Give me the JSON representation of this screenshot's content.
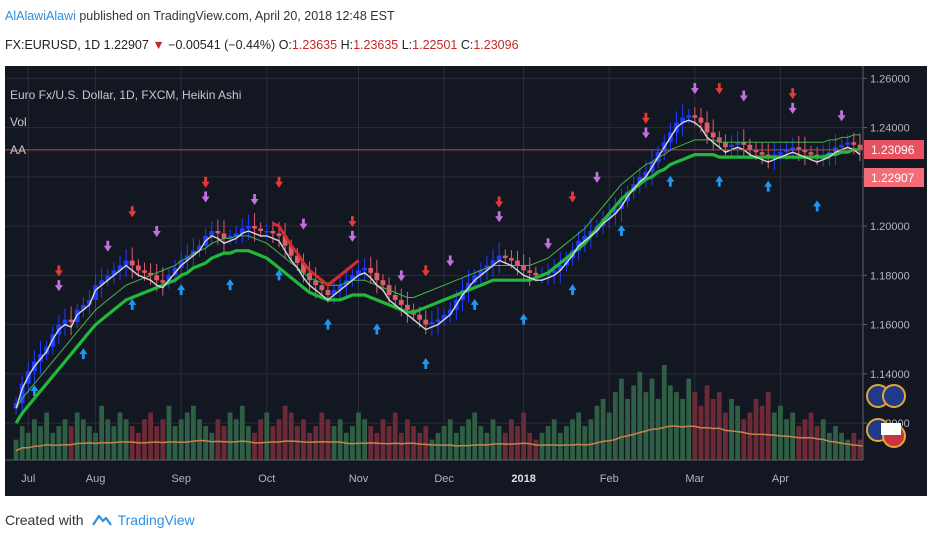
{
  "header": {
    "author": "AlAlawiAlawi",
    "published": "published on TradingView.com, April 20, 2018 12:48 EST"
  },
  "ohlc": {
    "symbol": "FX:EURUSD, 1D",
    "last": "1.22907",
    "change": "−0.00541 (−0.44%)",
    "o_label": "O:",
    "o": "1.23635",
    "h_label": "H:",
    "h": "1.23635",
    "l_label": "L:",
    "l": "1.22501",
    "c_label": "C:",
    "c": "1.23096"
  },
  "legend": {
    "main": "Euro Fx/U.S. Dollar, 1D, FXCM, Heikin Ashi",
    "vol": "Vol",
    "aa": "AA"
  },
  "price_tags": {
    "upper": "1.23096",
    "lower": "1.22907"
  },
  "footer": {
    "created_with": "Created with",
    "brand": "TradingView"
  },
  "colors": {
    "background": "#131722",
    "grid": "#2a2e39",
    "bull_candle": "#1e3cff",
    "bear_candle": "#e05b6a",
    "ema_white": "#d8d8d8",
    "ema_green": "#22b83a",
    "thin_green": "#4caf50",
    "red_line": "#d82b2b",
    "buy_arrow": "#2196f3",
    "sell_arrow": "#c36fe0",
    "red_arrow": "#e53935",
    "vol_up": "#2e5e44",
    "vol_down": "#6b2a36",
    "vol_ma": "#c8834a",
    "hline": "#b05050",
    "tag_upper": "#e6525f",
    "tag_lower": "#f26d78"
  },
  "chart_data": {
    "type": "line",
    "title": "Euro Fx/U.S. Dollar, 1D, FXCM, Heikin Ashi",
    "x_tick_labels": [
      "Jul",
      "Aug",
      "Sep",
      "Oct",
      "Nov",
      "Dec",
      "2018",
      "Feb",
      "Mar",
      "Apr"
    ],
    "y_tick_labels": [
      "1.26000",
      "1.24000",
      "1.22000",
      "1.20000",
      "1.18000",
      "1.16000",
      "1.14000",
      "1.12000"
    ],
    "ylim": [
      1.105,
      1.265
    ],
    "grid": true,
    "series": [
      {
        "values": [
          1.128,
          1.136,
          1.141,
          1.145,
          1.148,
          1.151,
          1.156,
          1.16,
          1.162,
          1.161,
          1.166,
          1.168,
          1.17,
          1.176,
          1.178,
          1.18,
          1.182,
          1.184,
          1.186,
          1.184,
          1.182,
          1.181,
          1.18,
          1.178,
          1.177,
          1.18,
          1.183,
          1.186,
          1.188,
          1.19,
          1.192,
          1.196,
          1.198,
          1.197,
          1.195,
          1.196,
          1.197,
          1.199,
          1.2,
          1.199,
          1.198,
          1.198,
          1.197,
          1.196,
          1.192,
          1.188,
          1.185,
          1.181,
          1.178,
          1.176,
          1.174,
          1.172,
          1.174,
          1.176,
          1.178,
          1.18,
          1.182,
          1.183,
          1.181,
          1.178,
          1.176,
          1.172,
          1.17,
          1.168,
          1.166,
          1.164,
          1.162,
          1.16,
          1.161,
          1.162,
          1.164,
          1.166,
          1.17,
          1.174,
          1.177,
          1.18,
          1.182,
          1.184,
          1.186,
          1.188,
          1.187,
          1.186,
          1.184,
          1.182,
          1.181,
          1.18,
          1.18,
          1.181,
          1.182,
          1.184,
          1.187,
          1.19,
          1.194,
          1.196,
          1.198,
          1.2,
          1.203,
          1.205,
          1.207,
          1.21,
          1.214,
          1.217,
          1.22,
          1.222,
          1.226,
          1.23,
          1.234,
          1.238,
          1.242,
          1.244,
          1.245,
          1.244,
          1.242,
          1.238,
          1.236,
          1.234,
          1.232,
          1.233,
          1.234,
          1.233,
          1.231,
          1.23,
          1.229,
          1.228,
          1.229,
          1.23,
          1.231,
          1.232,
          1.231,
          1.23,
          1.229,
          1.228,
          1.229,
          1.23,
          1.232,
          1.233,
          1.234,
          1.233,
          1.231
        ]
      },
      {
        "values": [
          1.12,
          1.124,
          1.127,
          1.13,
          1.133,
          1.136,
          1.139,
          1.142,
          1.145,
          1.148,
          1.151,
          1.154,
          1.157,
          1.16,
          1.162,
          1.164,
          1.166,
          1.168,
          1.17,
          1.171,
          1.172,
          1.173,
          1.174,
          1.175,
          1.176,
          1.177,
          1.178,
          1.18,
          1.181,
          1.183,
          1.184,
          1.185,
          1.187,
          1.188,
          1.189,
          1.189,
          1.19,
          1.19,
          1.19,
          1.189,
          1.188,
          1.187,
          1.185,
          1.183,
          1.181,
          1.179,
          1.177,
          1.175,
          1.173,
          1.172,
          1.171,
          1.17,
          1.17,
          1.17,
          1.171,
          1.172,
          1.172,
          1.172,
          1.171,
          1.17,
          1.169,
          1.168,
          1.167,
          1.166,
          1.165,
          1.165,
          1.166,
          1.167,
          1.168,
          1.169,
          1.17,
          1.171,
          1.172,
          1.173,
          1.174,
          1.175,
          1.176,
          1.177,
          1.178,
          1.178,
          1.178,
          1.178,
          1.178,
          1.178,
          1.178,
          1.179,
          1.18,
          1.181,
          1.183,
          1.185,
          1.187,
          1.189,
          1.191,
          1.193,
          1.196,
          1.199,
          1.202,
          1.205,
          1.208,
          1.211,
          1.213,
          1.215,
          1.217,
          1.219,
          1.22,
          1.222,
          1.223,
          1.225,
          1.226,
          1.227,
          1.228,
          1.229,
          1.229,
          1.229,
          1.229,
          1.228,
          1.228,
          1.228,
          1.228,
          1.228,
          1.228,
          1.228,
          1.228,
          1.228,
          1.228,
          1.228,
          1.228,
          1.228,
          1.228,
          1.228,
          1.228,
          1.228,
          1.228,
          1.229,
          1.229,
          1.23,
          1.23,
          1.231,
          1.231
        ]
      }
    ],
    "volume": [
      3,
      5,
      4,
      6,
      5,
      7,
      4,
      5,
      6,
      5,
      7,
      6,
      5,
      4,
      8,
      6,
      5,
      7,
      6,
      5,
      4,
      6,
      7,
      5,
      6,
      8,
      5,
      6,
      7,
      8,
      6,
      5,
      4,
      6,
      5,
      7,
      6,
      8,
      5,
      4,
      6,
      7,
      5,
      6,
      8,
      7,
      5,
      6,
      4,
      5,
      7,
      6,
      5,
      6,
      4,
      5,
      7,
      6,
      5,
      4,
      6,
      5,
      7,
      4,
      6,
      5,
      4,
      5,
      3,
      4,
      5,
      6,
      4,
      5,
      6,
      7,
      5,
      4,
      6,
      5,
      4,
      6,
      5,
      7,
      4,
      3,
      4,
      5,
      6,
      4,
      5,
      6,
      7,
      5,
      6,
      8,
      9,
      7,
      10,
      12,
      9,
      11,
      13,
      10,
      12,
      9,
      14,
      11,
      10,
      9,
      12,
      10,
      8,
      11,
      9,
      10,
      7,
      9,
      8,
      6,
      7,
      9,
      8,
      10,
      7,
      8,
      6,
      7,
      5,
      6,
      7,
      5,
      6,
      4,
      5,
      4,
      3,
      4,
      3,
      3
    ]
  }
}
